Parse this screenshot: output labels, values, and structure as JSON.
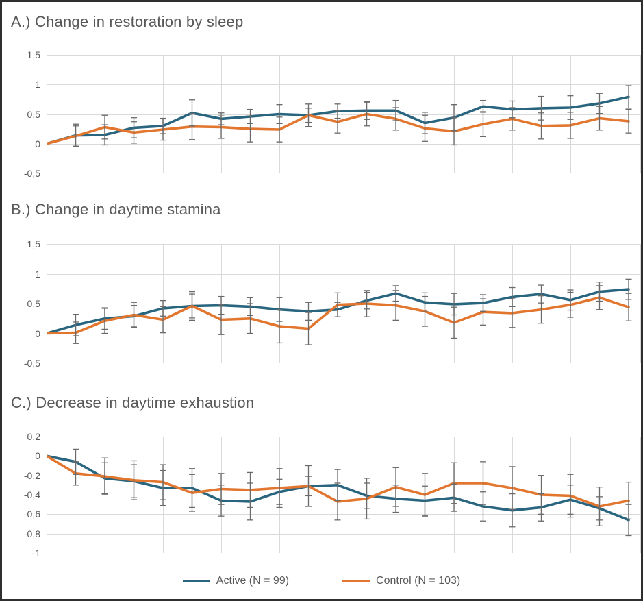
{
  "figure": {
    "decimal_separator": "comma",
    "colors": {
      "active_line": "#29657f",
      "control_line": "#e2762f",
      "gridline": "#d9d9d9",
      "error_bar": "#6a6a6a",
      "text": "#595959",
      "frame_border": "#2f2f2f"
    }
  },
  "legend": {
    "position": "bottom-center",
    "active_label": "Active (N = 99)",
    "control_label": "Control (N = 103)"
  },
  "chart_data": [
    {
      "type": "line",
      "title": "A.) Change in restoration by sleep",
      "xlabel": "",
      "ylabel": "",
      "ylim": [
        -0.5,
        1.5
      ],
      "grid": true,
      "n_points": 21,
      "error_bars": true,
      "legend_position": "bottom",
      "yticks": [
        {
          "v": 1.5,
          "label": "1,5"
        },
        {
          "v": 1.0,
          "label": "1"
        },
        {
          "v": 0.5,
          "label": "0,5"
        },
        {
          "v": 0.0,
          "label": "0"
        },
        {
          "v": -0.5,
          "label": "-0,5"
        }
      ],
      "series": [
        {
          "name": "Active (N = 99)",
          "color": "#29657f",
          "values": [
            0,
            0.14,
            0.15,
            0.27,
            0.3,
            0.52,
            0.42,
            0.46,
            0.5,
            0.48,
            0.55,
            0.56,
            0.56,
            0.35,
            0.44,
            0.63,
            0.58,
            0.6,
            0.61,
            0.68,
            0.79
          ],
          "err": [
            0,
            0.19,
            0.17,
            0.17,
            0.13,
            0.22,
            0.1,
            0.12,
            0.16,
            0.12,
            0.12,
            0.15,
            0.17,
            0.18,
            0.22,
            0.1,
            0.14,
            0.2,
            0.2,
            0.17,
            0.19
          ]
        },
        {
          "name": "Control (N = 103)",
          "color": "#e2762f",
          "values": [
            0,
            0.13,
            0.28,
            0.19,
            0.24,
            0.29,
            0.28,
            0.25,
            0.24,
            0.48,
            0.37,
            0.5,
            0.42,
            0.26,
            0.21,
            0.33,
            0.42,
            0.3,
            0.31,
            0.43,
            0.38
          ],
          "err": [
            0,
            0.17,
            0.2,
            0.18,
            0.18,
            0.22,
            0.19,
            0.22,
            0.21,
            0.19,
            0.19,
            0.2,
            0.19,
            0.22,
            0.23,
            0.21,
            0.19,
            0.22,
            0.22,
            0.2,
            0.2
          ]
        }
      ]
    },
    {
      "type": "line",
      "title": "B.) Change in daytime stamina",
      "xlabel": "",
      "ylabel": "",
      "ylim": [
        -0.5,
        1.5
      ],
      "grid": true,
      "n_points": 21,
      "error_bars": true,
      "legend_position": "bottom",
      "yticks": [
        {
          "v": 1.5,
          "label": "1,5"
        },
        {
          "v": 1.0,
          "label": "1"
        },
        {
          "v": 0.5,
          "label": "0,5"
        },
        {
          "v": 0.0,
          "label": "0"
        },
        {
          "v": -0.5,
          "label": "-0,5"
        }
      ],
      "series": [
        {
          "name": "Active (N = 99)",
          "color": "#29657f",
          "values": [
            0,
            0.14,
            0.25,
            0.29,
            0.42,
            0.46,
            0.47,
            0.45,
            0.4,
            0.37,
            0.4,
            0.55,
            0.67,
            0.52,
            0.49,
            0.51,
            0.61,
            0.66,
            0.56,
            0.7,
            0.74
          ],
          "err": [
            0,
            0.18,
            0.18,
            0.18,
            0.13,
            0.2,
            0.15,
            0.15,
            0.2,
            0.15,
            0.12,
            0.14,
            0.13,
            0.16,
            0.18,
            0.14,
            0.16,
            0.15,
            0.17,
            0.16,
            0.17
          ]
        },
        {
          "name": "Control (N = 103)",
          "color": "#e2762f",
          "values": [
            0,
            0.01,
            0.21,
            0.31,
            0.23,
            0.46,
            0.23,
            0.25,
            0.12,
            0.08,
            0.48,
            0.5,
            0.47,
            0.37,
            0.18,
            0.36,
            0.34,
            0.4,
            0.48,
            0.6,
            0.44
          ],
          "err": [
            0,
            0.18,
            0.21,
            0.21,
            0.22,
            0.24,
            0.25,
            0.25,
            0.28,
            0.27,
            0.2,
            0.22,
            0.25,
            0.25,
            0.26,
            0.22,
            0.24,
            0.23,
            0.21,
            0.2,
            0.23
          ]
        }
      ]
    },
    {
      "type": "line",
      "title": "C.) Decrease in daytime exhaustion",
      "xlabel": "",
      "ylabel": "",
      "ylim": [
        -1.0,
        0.2
      ],
      "grid": true,
      "n_points": 21,
      "error_bars": true,
      "legend_position": "bottom",
      "yticks": [
        {
          "v": 0.2,
          "label": "0,2"
        },
        {
          "v": 0.0,
          "label": "0"
        },
        {
          "v": -0.2,
          "label": "-0,2"
        },
        {
          "v": -0.4,
          "label": "-0,4"
        },
        {
          "v": -0.6,
          "label": "-0,6"
        },
        {
          "v": -0.8,
          "label": "-0,8"
        },
        {
          "v": -1.0,
          "label": "-1"
        }
      ],
      "series": [
        {
          "name": "Active (N = 99)",
          "color": "#29657f",
          "values": [
            0,
            -0.06,
            -0.23,
            -0.26,
            -0.33,
            -0.33,
            -0.46,
            -0.47,
            -0.37,
            -0.31,
            -0.3,
            -0.41,
            -0.44,
            -0.46,
            -0.43,
            -0.52,
            -0.56,
            -0.53,
            -0.45,
            -0.54,
            -0.66
          ],
          "err": [
            0,
            0.13,
            0.16,
            0.17,
            0.18,
            0.2,
            0.16,
            0.19,
            0.13,
            0.1,
            0.16,
            0.13,
            0.14,
            0.15,
            0.14,
            0.15,
            0.17,
            0.14,
            0.15,
            0.12,
            0.16
          ]
        },
        {
          "name": "Control (N = 103)",
          "color": "#e2762f",
          "values": [
            0,
            -0.18,
            -0.21,
            -0.25,
            -0.27,
            -0.38,
            -0.34,
            -0.35,
            -0.33,
            -0.31,
            -0.47,
            -0.44,
            -0.32,
            -0.4,
            -0.28,
            -0.28,
            -0.33,
            -0.4,
            -0.41,
            -0.52,
            -0.46
          ],
          "err": [
            0,
            0.12,
            0.19,
            0.2,
            0.18,
            0.19,
            0.16,
            0.18,
            0.2,
            0.21,
            0.19,
            0.21,
            0.2,
            0.22,
            0.21,
            0.22,
            0.22,
            0.2,
            0.22,
            0.2,
            0.19
          ]
        }
      ]
    }
  ]
}
